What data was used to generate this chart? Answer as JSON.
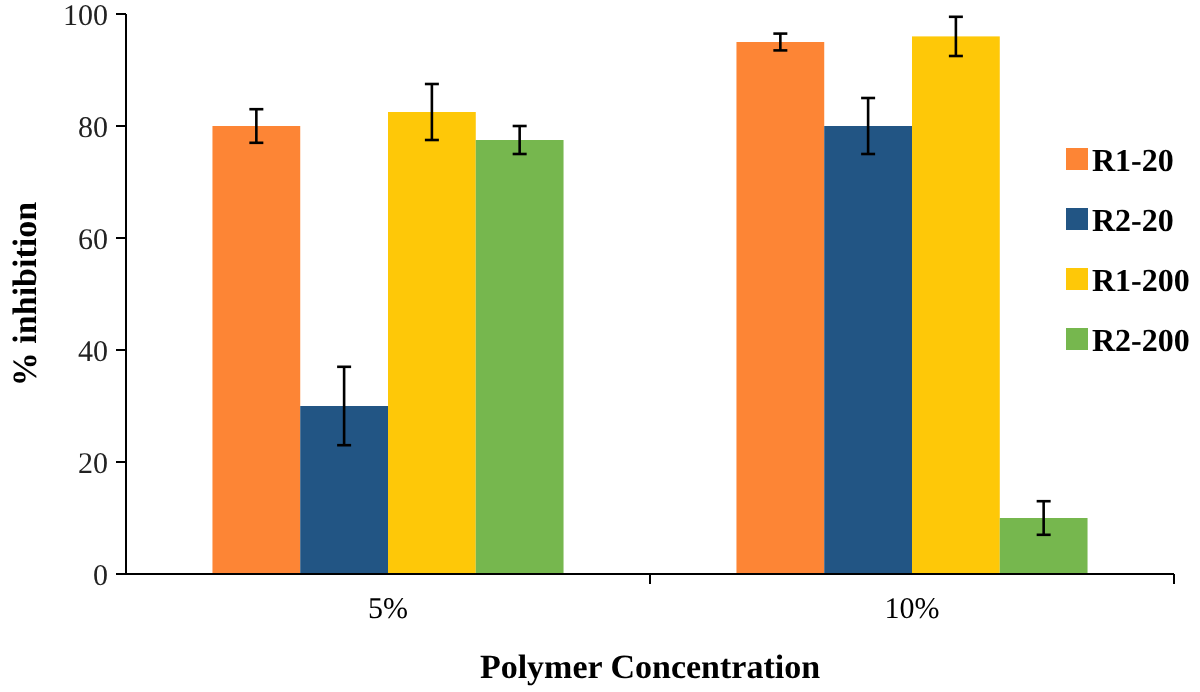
{
  "chart_data": {
    "type": "bar",
    "xlabel": "Polymer Concentration",
    "ylabel": "% inhibition",
    "categories": [
      "5%",
      "10%"
    ],
    "ylim": [
      0,
      100
    ],
    "yticks": [
      0,
      20,
      40,
      60,
      80,
      100
    ],
    "grid": false,
    "legend": "right",
    "series": [
      {
        "name": "R1-20",
        "color": "#fd8535",
        "values": [
          80,
          95
        ],
        "errors": [
          3,
          1.5
        ]
      },
      {
        "name": "R2-20",
        "color": "#225584",
        "values": [
          30,
          80
        ],
        "errors": [
          7,
          5
        ]
      },
      {
        "name": "R1-200",
        "color": "#fec808",
        "values": [
          82.5,
          96
        ],
        "errors": [
          5,
          3.5
        ]
      },
      {
        "name": "R2-200",
        "color": "#76b74e",
        "values": [
          77.5,
          10
        ],
        "errors": [
          2.5,
          3
        ]
      }
    ]
  }
}
